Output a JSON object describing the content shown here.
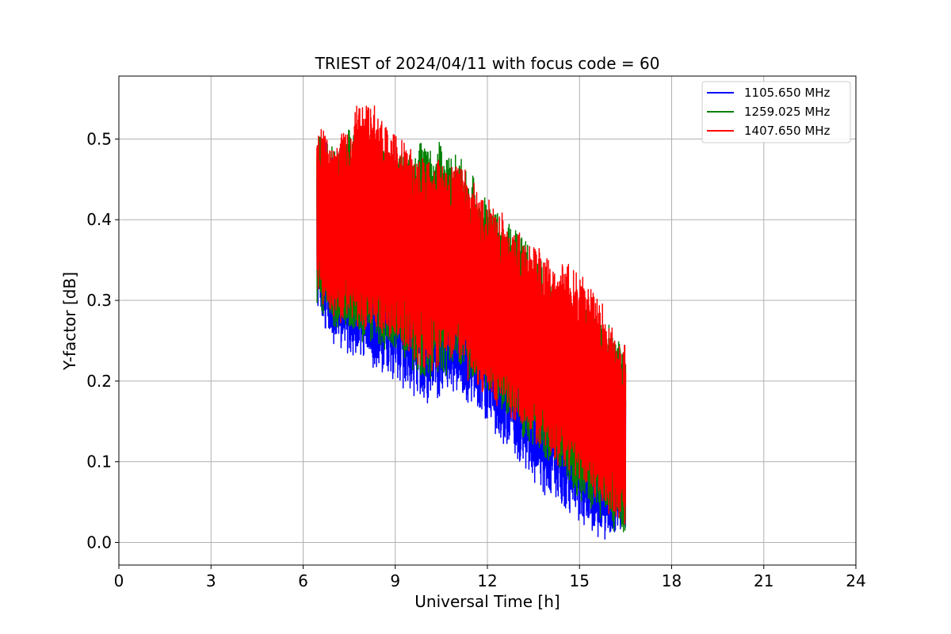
{
  "chart_data": {
    "type": "line",
    "title": "TRIEST of 2024/04/11 with focus code = 60",
    "xlabel": "Universal Time [h]",
    "ylabel": "Y-factor [dB]",
    "xlim": [
      0,
      24
    ],
    "ylim": [
      -0.028,
      0.578
    ],
    "xticks": [
      0,
      3,
      6,
      9,
      12,
      15,
      18,
      21,
      24
    ],
    "xtick_labels": [
      "0",
      "3",
      "6",
      "9",
      "12",
      "15",
      "18",
      "21",
      "24"
    ],
    "yticks": [
      0.0,
      0.1,
      0.2,
      0.3,
      0.4,
      0.5
    ],
    "ytick_labels": [
      "0.0",
      "0.1",
      "0.2",
      "0.3",
      "0.4",
      "0.5"
    ],
    "grid": true,
    "legend_position": "upper right",
    "x_range_data": [
      6.45,
      16.5
    ],
    "series": [
      {
        "name": "1105.650 MHz",
        "color": "#0000ff",
        "envelope": {
          "x": [
            6.45,
            7.0,
            8.0,
            9.0,
            10.0,
            11.0,
            12.0,
            13.0,
            14.0,
            15.0,
            16.0,
            16.5
          ],
          "upper": [
            0.5,
            0.48,
            0.47,
            0.46,
            0.43,
            0.42,
            0.38,
            0.34,
            0.29,
            0.25,
            0.2,
            0.18
          ],
          "lower": [
            0.29,
            0.25,
            0.23,
            0.2,
            0.18,
            0.19,
            0.15,
            0.1,
            0.06,
            0.03,
            0.0,
            0.02
          ]
        }
      },
      {
        "name": "1259.025 MHz",
        "color": "#008000",
        "envelope": {
          "x": [
            6.45,
            7.0,
            8.0,
            9.0,
            10.0,
            11.0,
            12.0,
            13.0,
            14.0,
            15.0,
            16.0,
            16.5
          ],
          "upper": [
            0.51,
            0.49,
            0.52,
            0.48,
            0.5,
            0.48,
            0.42,
            0.38,
            0.33,
            0.29,
            0.27,
            0.23
          ],
          "lower": [
            0.3,
            0.27,
            0.25,
            0.24,
            0.2,
            0.22,
            0.19,
            0.14,
            0.1,
            0.06,
            0.02,
            0.01
          ]
        }
      },
      {
        "name": "1407.650 MHz",
        "color": "#ff0000",
        "envelope": {
          "x": [
            6.45,
            7.0,
            8.0,
            9.0,
            10.0,
            11.0,
            12.0,
            13.0,
            14.0,
            15.0,
            16.0,
            16.5
          ],
          "upper": [
            0.52,
            0.49,
            0.55,
            0.5,
            0.47,
            0.47,
            0.42,
            0.38,
            0.35,
            0.34,
            0.27,
            0.24
          ],
          "lower": [
            0.31,
            0.28,
            0.27,
            0.25,
            0.22,
            0.22,
            0.18,
            0.15,
            0.11,
            0.08,
            0.04,
            0.01
          ]
        }
      }
    ]
  }
}
